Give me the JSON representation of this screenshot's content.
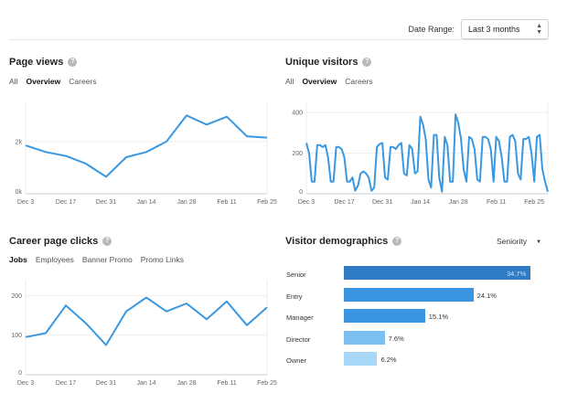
{
  "colors": {
    "line": "#3a98e0",
    "grid": "#eeeeee",
    "axis": "#cccccc"
  },
  "header": {
    "date_range_label": "Date Range:",
    "date_range_value": "Last 3 months",
    "caret_icon": "updown-caret-icon"
  },
  "page_views": {
    "title": "Page views",
    "tabs": [
      "All",
      "Overview",
      "Careers"
    ],
    "active_tab": "Overview"
  },
  "unique_visitors": {
    "title": "Unique visitors",
    "tabs": [
      "All",
      "Overview",
      "Careers"
    ],
    "active_tab": "Overview"
  },
  "career_clicks": {
    "title": "Career page clicks",
    "tabs": [
      "Jobs",
      "Employees",
      "Banner Promo",
      "Promo Links"
    ],
    "active_tab": "Jobs"
  },
  "demographics": {
    "title": "Visitor demographics",
    "filter": "Seniority",
    "rows": [
      {
        "label": "Senior",
        "value": 34.7,
        "text": "34.7%",
        "color": "#2f7bc4",
        "inside": true
      },
      {
        "label": "Entry",
        "value": 24.1,
        "text": "24.1%",
        "color": "#3b94e0",
        "inside": false
      },
      {
        "label": "Manager",
        "value": 15.1,
        "text": "15.1%",
        "color": "#3b94e0",
        "inside": false
      },
      {
        "label": "Director",
        "value": 7.6,
        "text": "7.6%",
        "color": "#7cc0f2",
        "inside": false
      },
      {
        "label": "Owner",
        "value": 6.2,
        "text": "6.2%",
        "color": "#a9d7f7",
        "inside": false
      }
    ]
  },
  "chart_data": [
    {
      "type": "line",
      "x": [
        0,
        1,
        2,
        3,
        4,
        5,
        6,
        7,
        8,
        9,
        10,
        11,
        12
      ],
      "values": [
        1850,
        1600,
        1450,
        1150,
        650,
        1400,
        1600,
        2000,
        3000,
        2650,
        2950,
        2200,
        2150
      ],
      "xticks": [
        "Dec 3",
        "Dec 17",
        "Dec 31",
        "Jan 14",
        "Jan 28",
        "Feb 11",
        "Feb 25"
      ],
      "xtick_at": [
        0,
        2,
        4,
        6,
        8,
        10,
        12
      ],
      "yticks": [
        "0k",
        "2k"
      ],
      "ytick_values": [
        0,
        2000
      ],
      "ylim": [
        0,
        3500
      ]
    },
    {
      "type": "line",
      "x": [
        0,
        1,
        2,
        3,
        4,
        5,
        6,
        7,
        8,
        9,
        10,
        11,
        12,
        13,
        14,
        15,
        16,
        17,
        18,
        19,
        20,
        21,
        22,
        23,
        24,
        25,
        26,
        27,
        28,
        29,
        30,
        31,
        32,
        33,
        34,
        35,
        36,
        37,
        38,
        39,
        40,
        41,
        42,
        43,
        44,
        45,
        46,
        47,
        48,
        49,
        50,
        51,
        52,
        53,
        54,
        55,
        56,
        57,
        58,
        59,
        60,
        61,
        62,
        63,
        64,
        65,
        66,
        67,
        68,
        69,
        70,
        71,
        72,
        73,
        74,
        75,
        76,
        77,
        78,
        79,
        80,
        81,
        82,
        83,
        84,
        85,
        86,
        87,
        88,
        89
      ],
      "values": [
        250,
        200,
        60,
        60,
        240,
        240,
        230,
        240,
        180,
        60,
        60,
        230,
        230,
        220,
        180,
        60,
        60,
        80,
        15,
        40,
        100,
        110,
        100,
        80,
        15,
        30,
        230,
        245,
        250,
        80,
        70,
        230,
        230,
        220,
        240,
        250,
        100,
        90,
        240,
        220,
        100,
        110,
        380,
        340,
        270,
        70,
        30,
        290,
        290,
        80,
        10,
        280,
        240,
        60,
        60,
        390,
        350,
        270,
        120,
        60,
        280,
        270,
        220,
        70,
        60,
        280,
        280,
        270,
        220,
        60,
        280,
        260,
        180,
        60,
        60,
        280,
        290,
        260,
        100,
        70,
        270,
        270,
        280,
        200,
        60,
        280,
        290,
        120,
        60,
        10
      ],
      "xticks": [
        "Dec 3",
        "Dec 17",
        "Dec 31",
        "Jan 14",
        "Jan 28",
        "Feb 11",
        "Feb 25"
      ],
      "xtick_at": [
        0,
        14,
        28,
        42,
        56,
        70,
        84
      ],
      "yticks": [
        "0",
        "200",
        "400"
      ],
      "ytick_values": [
        0,
        200,
        400
      ],
      "ylim": [
        0,
        450
      ]
    },
    {
      "type": "line",
      "x": [
        0,
        1,
        2,
        3,
        4,
        5,
        6,
        7,
        8,
        9,
        10,
        11,
        12
      ],
      "values": [
        95,
        105,
        175,
        130,
        75,
        160,
        195,
        160,
        180,
        140,
        185,
        125,
        170
      ],
      "xticks": [
        "Dec 3",
        "Dec 17",
        "Dec 31",
        "Jan 14",
        "Jan 28",
        "Feb 11",
        "Feb 25"
      ],
      "xtick_at": [
        0,
        2,
        4,
        6,
        8,
        10,
        12
      ],
      "yticks": [
        "0",
        "100",
        "200"
      ],
      "ytick_values": [
        0,
        100,
        200
      ],
      "ylim": [
        0,
        240
      ]
    },
    {
      "type": "bar",
      "categories": [
        "Senior",
        "Entry",
        "Manager",
        "Director",
        "Owner"
      ],
      "values": [
        34.7,
        24.1,
        15.1,
        7.6,
        6.2
      ],
      "labels": [
        "34.7%",
        "24.1%",
        "15.1%",
        "7.6%",
        "6.2%"
      ],
      "orientation": "horizontal"
    }
  ]
}
